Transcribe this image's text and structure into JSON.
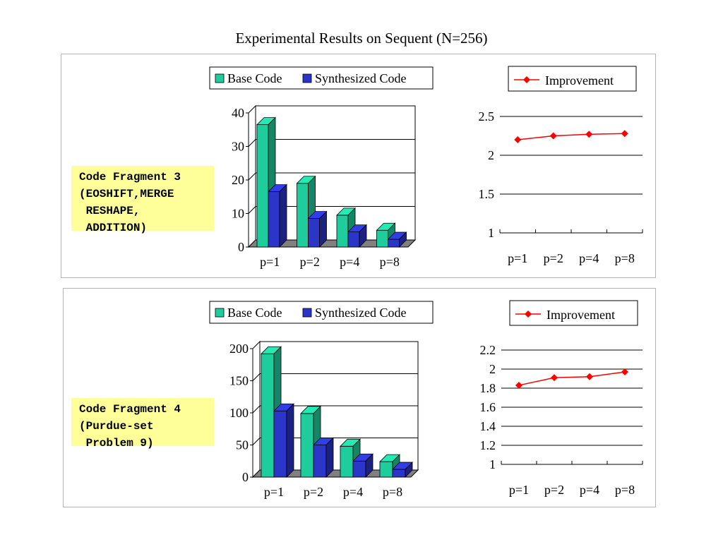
{
  "slide": {
    "title": "Experimental Results on Sequent (N=256)"
  },
  "fragments": [
    {
      "label": "Code Fragment 3\n(EOSHIFT,MERGE\n RESHAPE,\n ADDITION)"
    },
    {
      "label": "Code Fragment 4\n(Purdue-set\n Problem 9)"
    }
  ],
  "colors": {
    "base": "#1fcc9c",
    "synth": "#2b35c8",
    "improvement": "#ff0000",
    "floor": "#808080"
  },
  "chart_data": [
    {
      "type": "bar",
      "categories": [
        "p=1",
        "p=2",
        "p=4",
        "p=8"
      ],
      "series": [
        {
          "name": "Base Code",
          "values": [
            36.5,
            19,
            9.5,
            5
          ]
        },
        {
          "name": "Synthesized Code",
          "values": [
            16.5,
            8.5,
            4.5,
            2.3
          ]
        }
      ],
      "ylim": [
        0,
        40
      ],
      "yticks": [
        "0",
        "10",
        "20",
        "30",
        "40"
      ],
      "legend": "top"
    },
    {
      "type": "line",
      "categories": [
        "p=1",
        "p=2",
        "p=4",
        "p=8"
      ],
      "series": [
        {
          "name": "Improvement",
          "values": [
            2.2,
            2.25,
            2.27,
            2.28
          ]
        }
      ],
      "ylim": [
        1,
        2.5
      ],
      "yticks": [
        "1",
        "1.5",
        "2",
        "2.5"
      ],
      "legend": "top"
    },
    {
      "type": "bar",
      "categories": [
        "p=1",
        "p=2",
        "p=4",
        "p=8"
      ],
      "series": [
        {
          "name": "Base Code",
          "values": [
            192,
            99,
            48,
            24
          ]
        },
        {
          "name": "Synthesized Code",
          "values": [
            103,
            50,
            25,
            12
          ]
        }
      ],
      "ylim": [
        0,
        200
      ],
      "yticks": [
        "0",
        "50",
        "100",
        "150",
        "200"
      ],
      "legend": "top"
    },
    {
      "type": "line",
      "categories": [
        "p=1",
        "p=2",
        "p=4",
        "p=8"
      ],
      "series": [
        {
          "name": "Improvement",
          "values": [
            1.83,
            1.91,
            1.92,
            1.97
          ]
        }
      ],
      "ylim": [
        1,
        2.2
      ],
      "yticks": [
        "1",
        "1.2",
        "1.4",
        "1.6",
        "1.8",
        "2",
        "2.2"
      ],
      "legend": "top"
    }
  ]
}
